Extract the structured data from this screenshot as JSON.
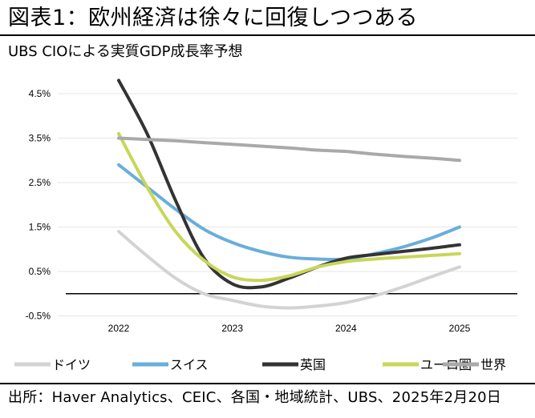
{
  "title": "図表1：欧州経済は徐々に回復しつつある",
  "subtitle": "UBS CIOによる実質GDP成長率予想",
  "source": "出所：Haver Analytics、CEIC、各国・地域統計、UBS、2025年2月20日",
  "chart_data": {
    "type": "line",
    "x": [
      2022,
      2022.25,
      2022.5,
      2022.75,
      2023,
      2023.25,
      2023.5,
      2023.75,
      2024,
      2024.25,
      2024.5,
      2024.75,
      2025
    ],
    "x_tick_labels": [
      "2022",
      "2023",
      "2024",
      "2025"
    ],
    "y_tick_labels": [
      "4.5%",
      "3.5%",
      "2.5%",
      "1.5%",
      "0.5%",
      "-0.5%"
    ],
    "y_ticks": [
      4.5,
      3.5,
      2.5,
      1.5,
      0.5,
      -0.5
    ],
    "ylim": [
      -0.5,
      4.9
    ],
    "xlim": [
      2021.9,
      2025.5
    ],
    "zero_line": 0,
    "series": [
      {
        "name": "ドイツ",
        "color": "#d3d3d3",
        "values": [
          1.4,
          0.85,
          0.35,
          0.0,
          -0.15,
          -0.28,
          -0.32,
          -0.28,
          -0.2,
          -0.05,
          0.15,
          0.38,
          0.6
        ]
      },
      {
        "name": "スイス",
        "color": "#6aaedb",
        "values": [
          2.9,
          2.4,
          1.9,
          1.45,
          1.15,
          0.95,
          0.82,
          0.78,
          0.78,
          0.9,
          1.05,
          1.25,
          1.5
        ]
      },
      {
        "name": "英国",
        "color": "#333333",
        "values": [
          4.8,
          3.6,
          2.1,
          0.8,
          0.22,
          0.15,
          0.35,
          0.6,
          0.8,
          0.88,
          0.95,
          1.02,
          1.1
        ]
      },
      {
        "name": "ユーロ圏",
        "color": "#c8d65a",
        "values": [
          3.6,
          2.4,
          1.4,
          0.75,
          0.38,
          0.3,
          0.4,
          0.6,
          0.72,
          0.78,
          0.82,
          0.86,
          0.9
        ]
      },
      {
        "name": "世界",
        "color": "#a9a9a9",
        "values": [
          3.5,
          3.47,
          3.44,
          3.4,
          3.36,
          3.32,
          3.28,
          3.23,
          3.2,
          3.14,
          3.09,
          3.05,
          3.0
        ]
      }
    ]
  }
}
